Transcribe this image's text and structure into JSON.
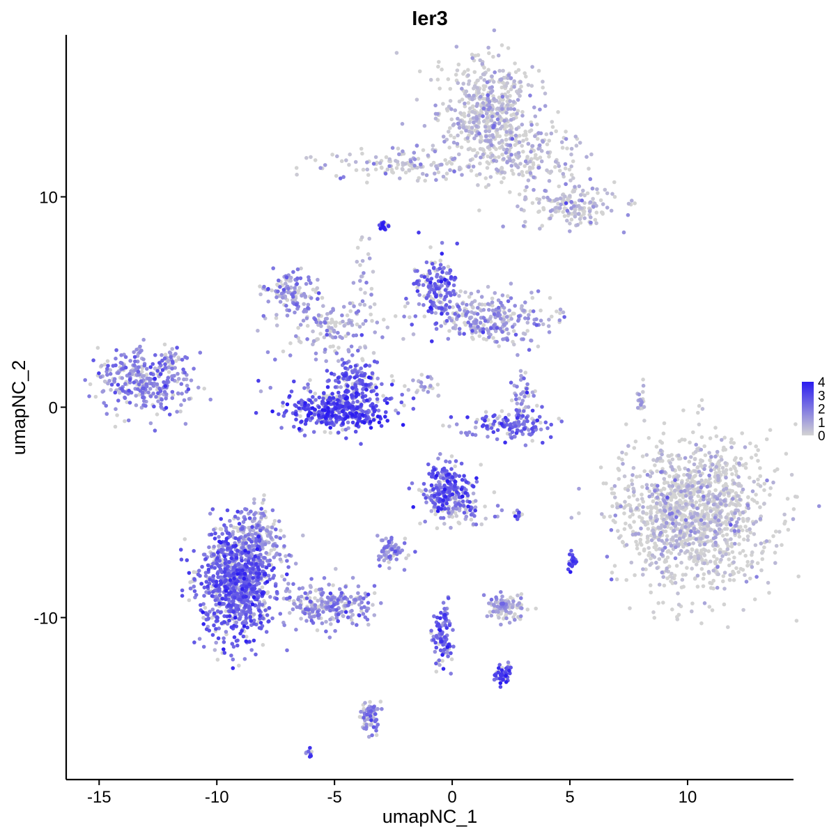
{
  "chart_data": {
    "type": "scatter",
    "title": "Ier3",
    "xlabel": "umapNC_1",
    "ylabel": "umapNC_2",
    "xlim": [
      -16.4,
      14.5
    ],
    "ylim": [
      -17.7,
      17.7
    ],
    "x_ticks": [
      -15,
      -10,
      -5,
      0,
      5,
      10
    ],
    "y_ticks": [
      -10,
      0,
      10
    ],
    "x_tick_labels": [
      "-15",
      "-10",
      "-5",
      "0",
      "5",
      "10"
    ],
    "y_tick_labels": [
      "-10",
      "0",
      "10"
    ],
    "grid": false,
    "legend": {
      "placement": "right",
      "type": "continuous colorbar",
      "labels": [
        "4",
        "3",
        "2",
        "1",
        "0"
      ],
      "range": [
        0,
        4
      ]
    },
    "colors": {
      "low": "#d3d3d3",
      "high": "#2b1cf0"
    },
    "clusters": [
      {
        "center": [
          1.5,
          14.2
        ],
        "spread": [
          1.0,
          1.2
        ],
        "n": 500,
        "expr": 0.3
      },
      {
        "center": [
          3.3,
          11.9
        ],
        "spread": [
          1.3,
          0.9
        ],
        "n": 200,
        "expr": 0.3
      },
      {
        "center": [
          -1.8,
          11.5
        ],
        "spread": [
          1.8,
          0.4
        ],
        "n": 140,
        "expr": 0.5
      },
      {
        "center": [
          5.2,
          9.5
        ],
        "spread": [
          1.0,
          0.5
        ],
        "n": 160,
        "expr": 0.4
      },
      {
        "center": [
          -2.9,
          8.6
        ],
        "spread": [
          0.1,
          0.1
        ],
        "n": 20,
        "expr": 3.8
      },
      {
        "center": [
          -6.8,
          5.4
        ],
        "spread": [
          0.6,
          0.5
        ],
        "n": 110,
        "expr": 1.3
      },
      {
        "center": [
          -5.3,
          3.8
        ],
        "spread": [
          1.2,
          0.8
        ],
        "n": 90,
        "expr": 1.2
      },
      {
        "center": [
          -0.7,
          5.7
        ],
        "spread": [
          0.5,
          0.8
        ],
        "n": 170,
        "expr": 2.3
      },
      {
        "center": [
          1.6,
          4.2
        ],
        "spread": [
          1.3,
          0.6
        ],
        "n": 260,
        "expr": 1.2
      },
      {
        "center": [
          -13.1,
          1.2
        ],
        "spread": [
          1.0,
          0.7
        ],
        "n": 320,
        "expr": 1.6
      },
      {
        "center": [
          -4.9,
          0.4
        ],
        "spread": [
          1.4,
          0.5
        ],
        "n": 120,
        "expr": 2.4
      },
      {
        "center": [
          -4.9,
          -0.3
        ],
        "spread": [
          1.1,
          0.4
        ],
        "n": 300,
        "expr": 3.0
      },
      {
        "center": [
          -4.1,
          1.3
        ],
        "spread": [
          0.6,
          0.5
        ],
        "n": 120,
        "expr": 2.4
      },
      {
        "center": [
          3.0,
          0.2
        ],
        "spread": [
          0.3,
          0.8
        ],
        "n": 60,
        "expr": 1.5
      },
      {
        "center": [
          2.4,
          -0.8
        ],
        "spread": [
          0.9,
          0.3
        ],
        "n": 120,
        "expr": 2.4
      },
      {
        "center": [
          10.3,
          -5.0
        ],
        "spread": [
          1.6,
          1.8
        ],
        "n": 1300,
        "expr": 0.1
      },
      {
        "center": [
          -0.2,
          -3.9
        ],
        "spread": [
          0.5,
          0.6
        ],
        "n": 220,
        "expr": 2.6
      },
      {
        "center": [
          0.6,
          -4.9
        ],
        "spread": [
          0.6,
          0.4
        ],
        "n": 70,
        "expr": 1.2
      },
      {
        "center": [
          -2.6,
          -6.8
        ],
        "spread": [
          0.3,
          0.3
        ],
        "n": 70,
        "expr": 1.5
      },
      {
        "center": [
          -9.2,
          -8.5
        ],
        "spread": [
          0.8,
          1.3
        ],
        "n": 900,
        "expr": 2.4
      },
      {
        "center": [
          -8.3,
          -6.4
        ],
        "spread": [
          0.6,
          0.8
        ],
        "n": 240,
        "expr": 1.3
      },
      {
        "center": [
          -5.2,
          -9.4
        ],
        "spread": [
          1.0,
          0.5
        ],
        "n": 250,
        "expr": 1.4
      },
      {
        "center": [
          2.3,
          -9.5
        ],
        "spread": [
          0.4,
          0.3
        ],
        "n": 100,
        "expr": 1.0
      },
      {
        "center": [
          -0.4,
          -10.9
        ],
        "spread": [
          0.2,
          0.7
        ],
        "n": 100,
        "expr": 2.4
      },
      {
        "center": [
          2.2,
          -12.7
        ],
        "spread": [
          0.2,
          0.2
        ],
        "n": 50,
        "expr": 2.9
      },
      {
        "center": [
          -3.5,
          -14.7
        ],
        "spread": [
          0.2,
          0.5
        ],
        "n": 70,
        "expr": 1.6
      },
      {
        "center": [
          -6.1,
          -16.4
        ],
        "spread": [
          0.1,
          0.1
        ],
        "n": 8,
        "expr": 3.0
      },
      {
        "center": [
          5.1,
          -7.3
        ],
        "spread": [
          0.1,
          0.2
        ],
        "n": 25,
        "expr": 2.8
      },
      {
        "center": [
          2.8,
          -5.1
        ],
        "spread": [
          0.1,
          0.1
        ],
        "n": 10,
        "expr": 3.0
      },
      {
        "center": [
          8.0,
          0.3
        ],
        "spread": [
          0.1,
          0.4
        ],
        "n": 20,
        "expr": 0.6
      },
      {
        "center": [
          -1.4,
          1.0
        ],
        "spread": [
          0.5,
          0.3
        ],
        "n": 25,
        "expr": 0.8
      },
      {
        "center": [
          -4.7,
          4.0
        ],
        "spread": [
          0.8,
          0.5
        ],
        "n": 50,
        "expr": 0.8
      },
      {
        "center": [
          -3.8,
          6.3
        ],
        "spread": [
          0.2,
          1.0
        ],
        "n": 25,
        "expr": 0.7
      },
      {
        "center": [
          -12.0,
          2.2
        ],
        "spread": [
          0.2,
          0.4
        ],
        "n": 25,
        "expr": 0.7
      }
    ]
  }
}
